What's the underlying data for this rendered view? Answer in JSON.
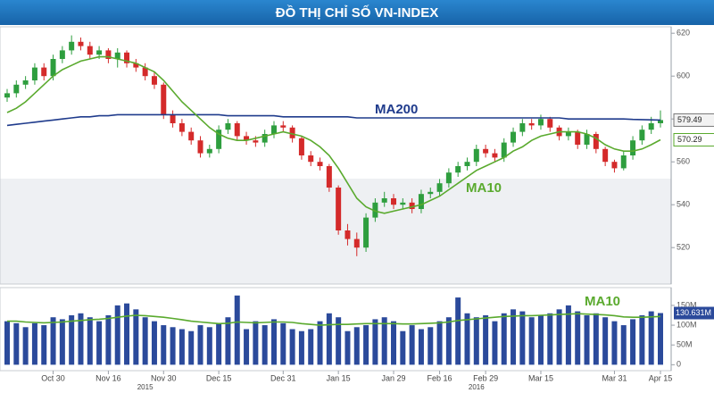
{
  "chart_data": [
    {
      "type": "candlestick",
      "title": "ĐỒ THỊ CHỈ SỐ VN-INDEX",
      "open": [
        590,
        592,
        596,
        598,
        604,
        600,
        608,
        612,
        616,
        614,
        610,
        612,
        608,
        611,
        606,
        604,
        600,
        596,
        582,
        578,
        574,
        570,
        564,
        566,
        575,
        578,
        572,
        570,
        569,
        573,
        577,
        576,
        571,
        563,
        560,
        558,
        548,
        528,
        524,
        520,
        534,
        541,
        543,
        540,
        541,
        538,
        545,
        546,
        550,
        555,
        558,
        560,
        566,
        564,
        562,
        569,
        574,
        578,
        577,
        580,
        576,
        572,
        574,
        568,
        573,
        566,
        560,
        557,
        563,
        570,
        575,
        578
      ],
      "high": [
        594,
        598,
        600,
        606,
        606,
        610,
        614,
        619,
        618,
        616,
        614,
        613,
        613,
        612,
        608,
        606,
        602,
        597,
        584,
        580,
        576,
        572,
        568,
        577,
        580,
        579,
        574,
        572,
        575,
        579,
        579,
        577,
        572,
        565,
        562,
        559,
        549,
        531,
        527,
        536,
        543,
        546,
        545,
        543,
        543,
        547,
        548,
        552,
        557,
        560,
        562,
        568,
        568,
        566,
        571,
        576,
        580,
        580,
        582,
        581,
        577,
        576,
        575,
        575,
        574,
        567,
        561,
        565,
        572,
        577,
        581,
        584
      ],
      "low": [
        588,
        590,
        594,
        596,
        598,
        598,
        606,
        610,
        612,
        608,
        608,
        606,
        604,
        604,
        602,
        598,
        594,
        580,
        576,
        572,
        568,
        562,
        562,
        564,
        573,
        570,
        568,
        567,
        567,
        571,
        574,
        569,
        561,
        558,
        556,
        546,
        526,
        521,
        516,
        518,
        532,
        539,
        538,
        538,
        536,
        536,
        543,
        544,
        548,
        553,
        556,
        558,
        562,
        560,
        560,
        567,
        572,
        575,
        575,
        574,
        570,
        570,
        566,
        566,
        564,
        558,
        555,
        556,
        561,
        568,
        573,
        576
      ],
      "close": [
        592,
        596,
        598,
        604,
        600,
        608,
        612,
        616,
        614,
        610,
        612,
        608,
        611,
        606,
        604,
        600,
        596,
        582,
        578,
        574,
        570,
        564,
        566,
        575,
        578,
        572,
        570,
        569,
        573,
        577,
        576,
        571,
        563,
        560,
        558,
        548,
        528,
        524,
        520,
        534,
        541,
        543,
        540,
        541,
        538,
        545,
        546,
        550,
        555,
        558,
        560,
        566,
        564,
        562,
        569,
        574,
        578,
        577,
        580,
        576,
        572,
        574,
        568,
        573,
        566,
        560,
        557,
        563,
        570,
        575,
        578,
        579.49
      ],
      "up_color": "#2e9e3e",
      "down_color": "#d42a2a",
      "series": [
        {
          "name": "MA200",
          "color": "#1f3b8c",
          "values": [
            577,
            577.5,
            578,
            578.5,
            579,
            579.5,
            580,
            580.5,
            581,
            581,
            581.5,
            581.5,
            582,
            582,
            582,
            582,
            582,
            582,
            582,
            582,
            582,
            582,
            582,
            582,
            581.5,
            581.5,
            581.5,
            581.5,
            581.5,
            581.5,
            581,
            581,
            581,
            581,
            581,
            581,
            581,
            581,
            580.5,
            580.5,
            580.5,
            580.5,
            580.5,
            580.5,
            580.5,
            580.5,
            580.5,
            580.5,
            580.5,
            580.5,
            580.5,
            580.5,
            580.5,
            580.5,
            580.5,
            580.5,
            580.5,
            580.5,
            580.5,
            580.5,
            580.5,
            580,
            580,
            580,
            580,
            580,
            580,
            580,
            579.8,
            579.7,
            579.6,
            579.49
          ]
        },
        {
          "name": "MA10",
          "color": "#5aaa2e",
          "values": [
            583,
            585,
            588,
            592,
            596,
            600,
            603,
            605,
            607,
            608,
            609,
            609,
            608,
            607,
            606,
            604,
            602,
            598,
            593,
            588,
            584,
            580,
            576,
            573,
            571,
            570,
            570,
            571,
            572,
            573,
            574,
            573,
            572,
            570,
            567,
            563,
            557,
            550,
            543,
            539,
            537,
            536,
            537,
            538,
            539,
            540,
            542,
            544,
            547,
            550,
            553,
            556,
            558,
            560,
            562,
            565,
            567,
            570,
            572,
            573,
            574,
            574,
            574,
            573,
            571,
            568,
            566,
            565,
            565,
            566,
            568,
            570.29
          ]
        }
      ],
      "ylim": [
        503,
        623
      ],
      "yticks": [
        520,
        540,
        560,
        580,
        600,
        620
      ]
    },
    {
      "type": "bar",
      "categories": [
        null,
        null,
        null,
        null,
        null,
        "Oct 30",
        null,
        null,
        null,
        null,
        null,
        "Nov 16",
        null,
        null,
        null,
        null,
        null,
        "Nov 30",
        null,
        null,
        null,
        null,
        null,
        "Dec 15",
        null,
        null,
        null,
        null,
        null,
        null,
        "Dec 31",
        null,
        null,
        null,
        null,
        null,
        "Jan 15",
        null,
        null,
        null,
        null,
        null,
        "Jan 29",
        null,
        null,
        null,
        null,
        "Feb 16",
        null,
        null,
        null,
        null,
        "Feb 29",
        null,
        null,
        null,
        null,
        null,
        "Mar 15",
        null,
        null,
        null,
        null,
        null,
        null,
        null,
        "Mar 31",
        null,
        null,
        null,
        null,
        "Apr 15"
      ],
      "x_group_labels": [
        {
          "label": "2015",
          "at": 15
        },
        {
          "label": "2016",
          "at": 51
        }
      ],
      "series": [
        {
          "name": "Volume",
          "color": "#2b4a9b",
          "values": [
            110,
            105,
            95,
            105,
            100,
            120,
            115,
            125,
            130,
            120,
            110,
            125,
            150,
            155,
            140,
            120,
            110,
            100,
            95,
            90,
            85,
            100,
            95,
            105,
            120,
            175,
            90,
            110,
            100,
            115,
            105,
            90,
            85,
            90,
            110,
            130,
            120,
            85,
            95,
            100,
            115,
            120,
            110,
            85,
            100,
            90,
            95,
            110,
            120,
            170,
            130,
            120,
            125,
            110,
            130,
            140,
            135,
            120,
            125,
            130,
            140,
            150,
            135,
            125,
            130,
            120,
            110,
            100,
            115,
            125,
            135,
            130.631
          ],
          "value_labels": [
            null,
            null,
            null,
            null,
            null,
            null,
            null,
            null,
            null,
            null,
            null,
            null,
            null,
            null,
            null,
            null,
            null,
            null,
            null,
            null,
            null,
            null,
            null,
            null,
            null,
            null,
            null,
            null,
            null,
            null,
            null,
            null,
            null,
            null,
            null,
            null,
            null,
            null,
            null,
            null,
            null,
            null,
            null,
            null,
            null,
            null,
            null,
            null,
            null,
            null,
            null,
            null,
            null,
            null,
            null,
            null,
            null,
            null,
            null,
            null,
            null,
            null,
            null,
            null,
            null,
            null,
            null,
            null,
            null,
            null,
            null,
            "130.631M"
          ]
        },
        {
          "name": "MA10",
          "color": "#5aaa2e",
          "values": [
            110,
            110,
            108,
            107,
            106,
            107,
            108,
            110,
            112,
            114,
            115,
            117,
            120,
            123,
            125,
            124,
            122,
            120,
            117,
            114,
            110,
            108,
            106,
            104,
            105,
            108,
            107,
            106,
            107,
            108,
            108,
            107,
            104,
            102,
            100,
            101,
            102,
            102,
            103,
            104,
            104,
            104,
            104,
            103,
            103,
            104,
            105,
            106,
            108,
            112,
            114,
            116,
            118,
            120,
            122,
            123,
            124,
            124,
            125,
            126,
            127,
            128,
            129,
            128,
            127,
            126,
            124,
            121,
            120,
            120,
            121,
            122
          ]
        }
      ],
      "ylim": [
        -15,
        195
      ],
      "yticks": [
        0,
        {
          "value": 50,
          "label": "50M"
        },
        {
          "value": 100,
          "label": "100M"
        },
        {
          "value": 150,
          "label": "150M"
        }
      ]
    }
  ]
}
